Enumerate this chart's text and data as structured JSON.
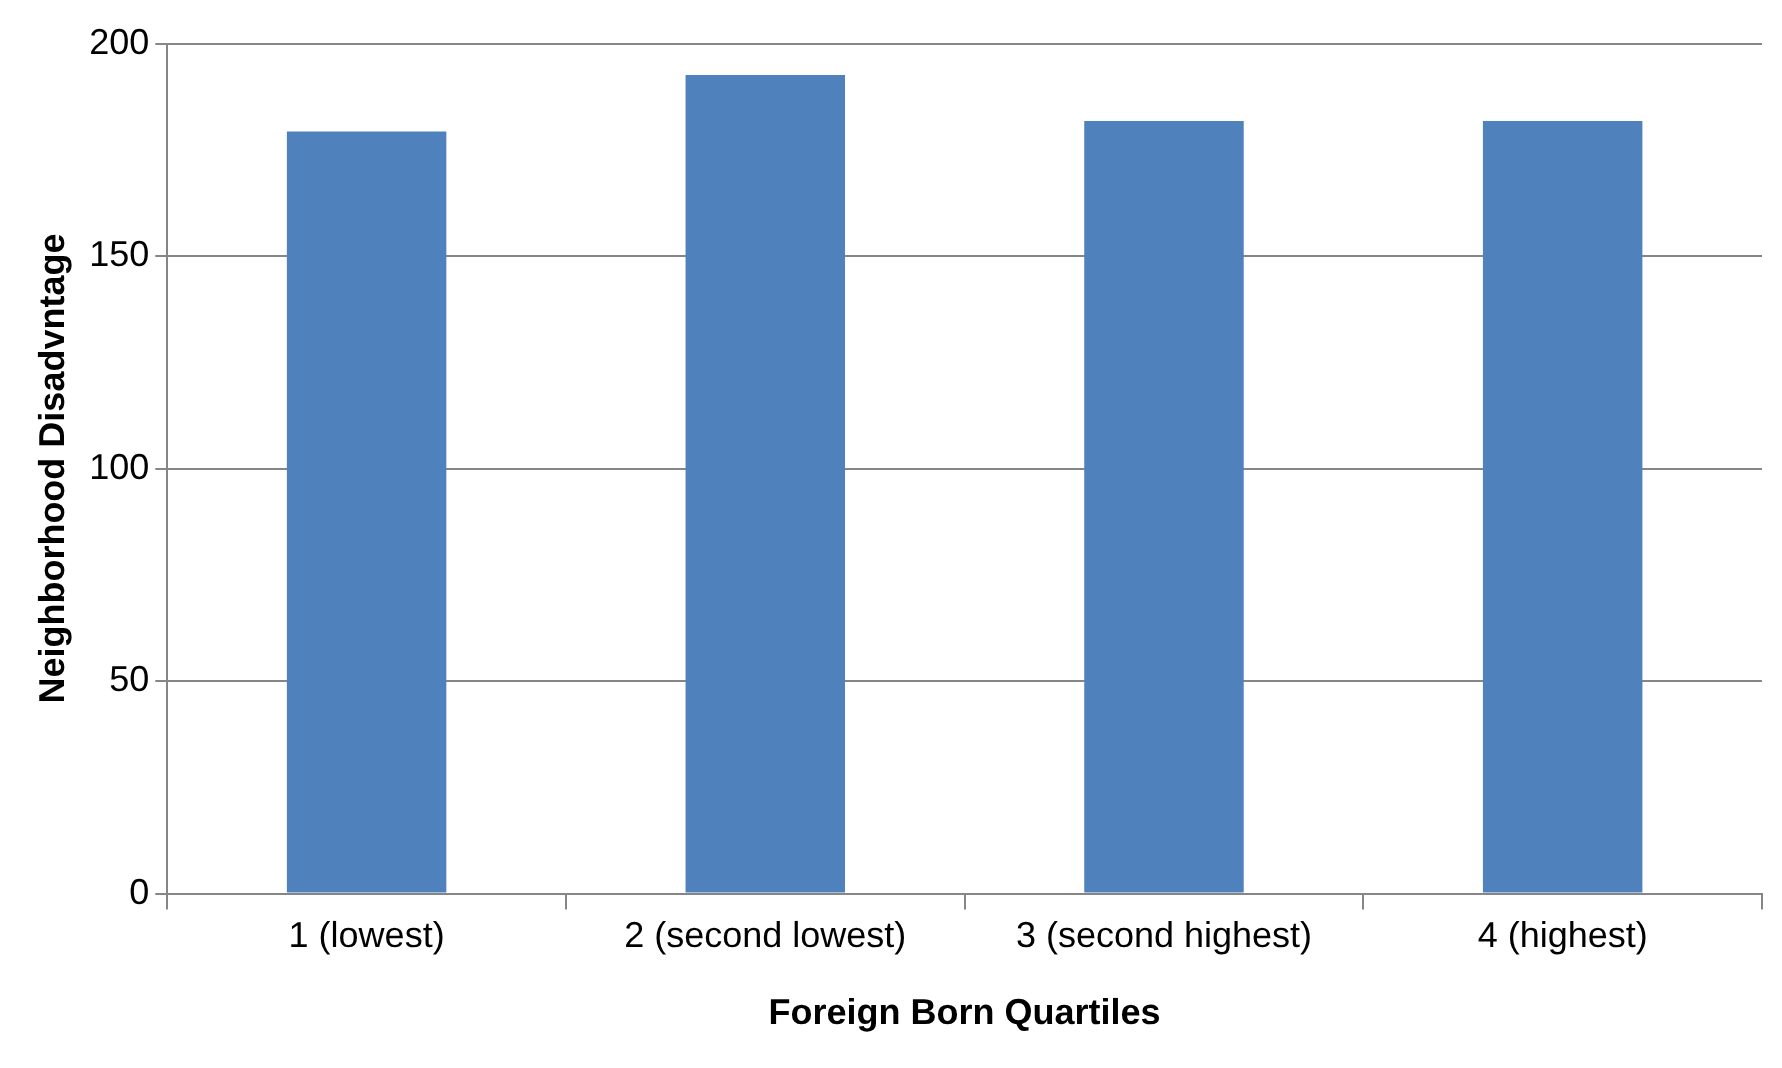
{
  "chart_data": {
    "type": "bar",
    "xlabel": "Foreign Born Quartiles",
    "ylabel": "Neighborhood Disadvntage",
    "categories": [
      "1 (lowest)",
      "2 (second lowest)",
      "3 (second highest)",
      "4 (highest)"
    ],
    "values": [
      179.3,
      192.6,
      181.8,
      181.8
    ],
    "color": "#4f81bd",
    "ylim": [
      0,
      200
    ],
    "yticks": [
      0,
      50,
      100,
      150,
      200
    ],
    "grid": "y"
  }
}
